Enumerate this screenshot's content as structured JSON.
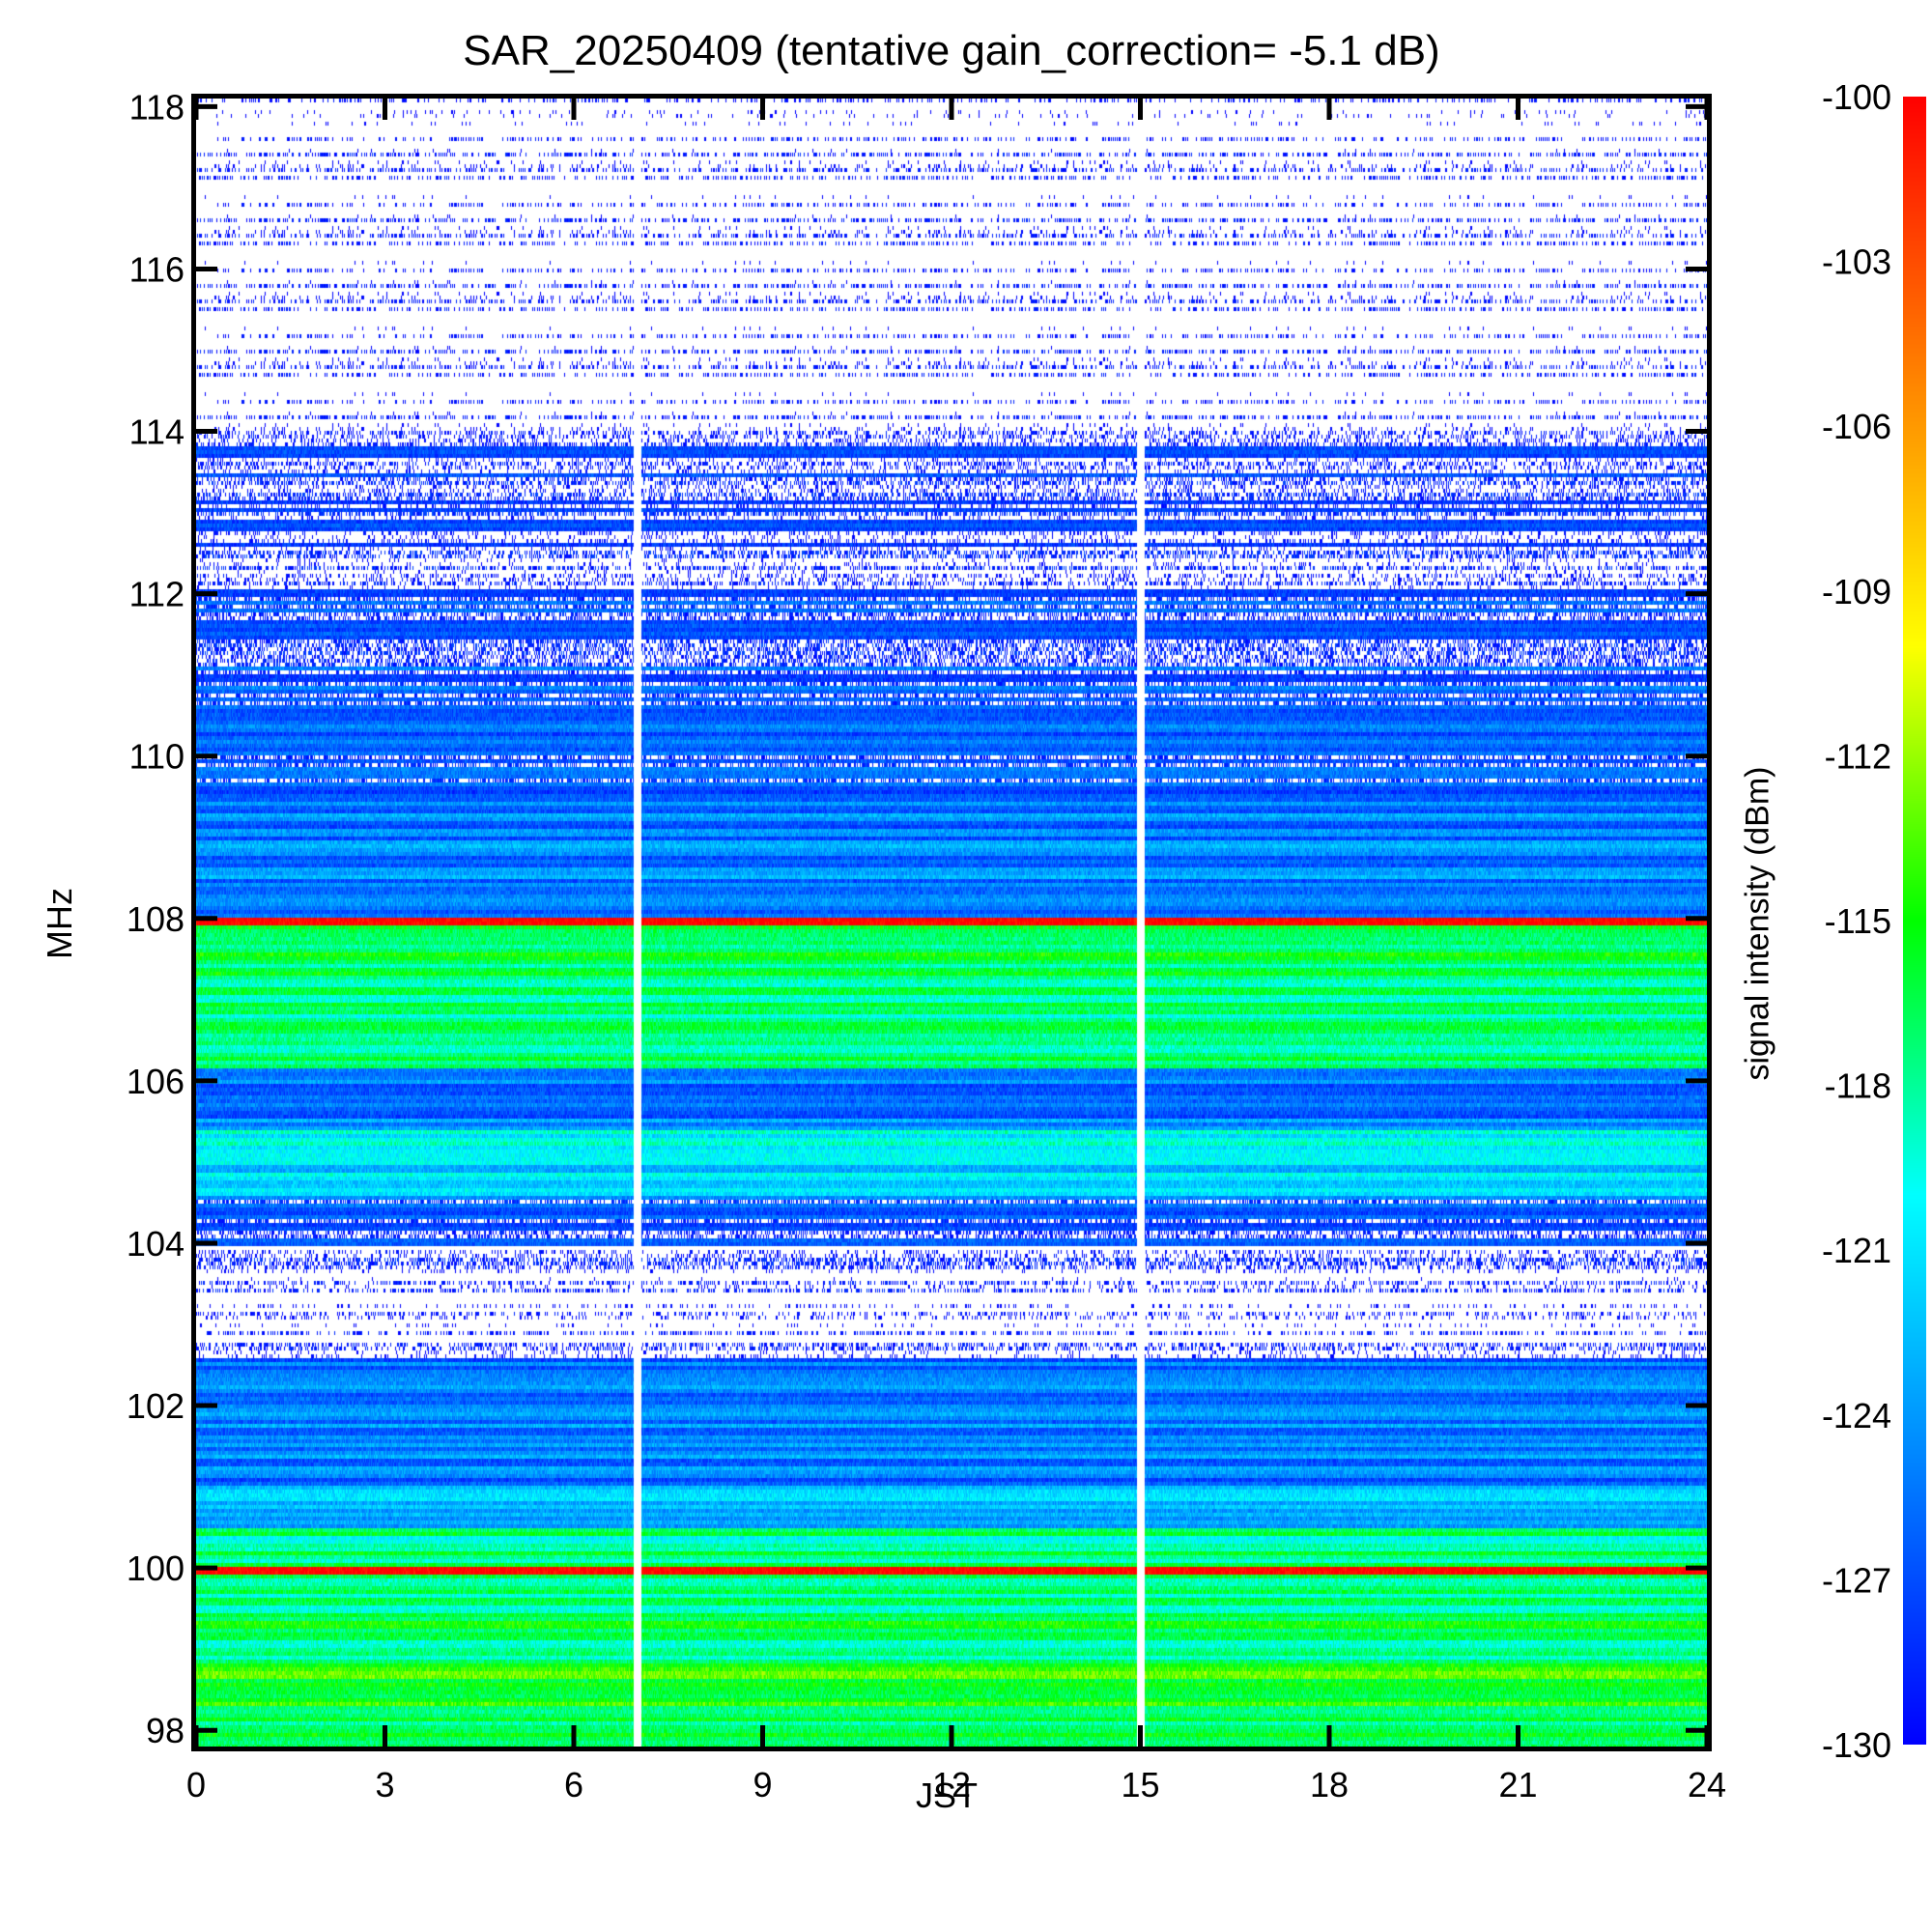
{
  "chart_data": {
    "type": "heatmap",
    "title": "SAR_20250409 (tentative gain_correction= -5.1 dB)",
    "xlabel": "JST",
    "ylabel": "MHz",
    "colorbar_label": "signal intensity (dBm)",
    "xlim": [
      0,
      24
    ],
    "ylim": [
      97.8,
      118.1
    ],
    "xticks": [
      "0",
      "3",
      "6",
      "9",
      "12",
      "15",
      "18",
      "21",
      "24"
    ],
    "yticks": [
      "98",
      "100",
      "102",
      "104",
      "106",
      "108",
      "110",
      "112",
      "114",
      "116",
      "118"
    ],
    "colorbar_range": [
      -130,
      -100
    ],
    "colorbar_ticks": [
      "-100",
      "-103",
      "-106",
      "-109",
      "-112",
      "-115",
      "-118",
      "-121",
      "-124",
      "-127",
      "-130"
    ],
    "colormap": [
      "#0000ff",
      "#0080ff",
      "#00ffff",
      "#00ff00",
      "#ffff00",
      "#ff8000",
      "#ff0000"
    ],
    "data_gaps_jst": [
      7.0,
      15.0
    ],
    "strong_lines_mhz": [
      {
        "mhz": 100.0,
        "dbm": -100
      },
      {
        "mhz": 108.0,
        "dbm": -100
      }
    ],
    "band_levels": [
      {
        "from_mhz": 97.8,
        "to_mhz": 98.3,
        "dbm": -116
      },
      {
        "from_mhz": 98.3,
        "to_mhz": 98.8,
        "dbm": -115
      },
      {
        "from_mhz": 98.8,
        "to_mhz": 99.5,
        "dbm": -117
      },
      {
        "from_mhz": 99.5,
        "to_mhz": 100.5,
        "dbm": -118
      },
      {
        "from_mhz": 100.5,
        "to_mhz": 101.0,
        "dbm": -122
      },
      {
        "from_mhz": 101.0,
        "to_mhz": 102.6,
        "dbm": -125
      },
      {
        "from_mhz": 102.6,
        "to_mhz": 104.0,
        "dbm": -131
      },
      {
        "from_mhz": 104.0,
        "to_mhz": 104.6,
        "dbm": -127
      },
      {
        "from_mhz": 104.6,
        "to_mhz": 105.4,
        "dbm": -121
      },
      {
        "from_mhz": 105.4,
        "to_mhz": 106.2,
        "dbm": -125
      },
      {
        "from_mhz": 106.2,
        "to_mhz": 107.2,
        "dbm": -118
      },
      {
        "from_mhz": 107.2,
        "to_mhz": 108.0,
        "dbm": -117
      },
      {
        "from_mhz": 108.0,
        "to_mhz": 109.5,
        "dbm": -125
      },
      {
        "from_mhz": 109.5,
        "to_mhz": 112.0,
        "dbm": -127
      },
      {
        "from_mhz": 112.0,
        "to_mhz": 114.0,
        "dbm": -129
      },
      {
        "from_mhz": 114.0,
        "to_mhz": 118.1,
        "dbm": -131
      }
    ],
    "grid": false
  }
}
